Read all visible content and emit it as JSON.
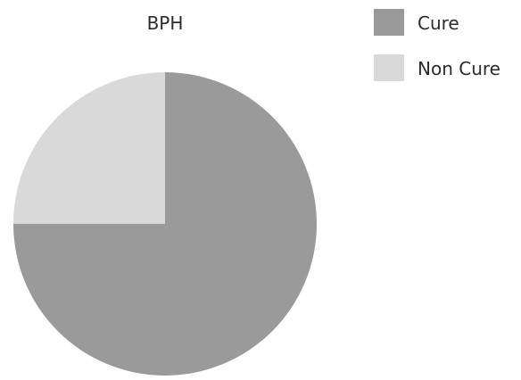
{
  "chart_data": {
    "type": "pie",
    "title": "BPH",
    "slices": [
      {
        "label": "Cure",
        "value": 75,
        "color": "#9a9a9a"
      },
      {
        "label": "Non Cure",
        "value": 25,
        "color": "#d9d9d9"
      }
    ],
    "legend_position": "top-right"
  }
}
